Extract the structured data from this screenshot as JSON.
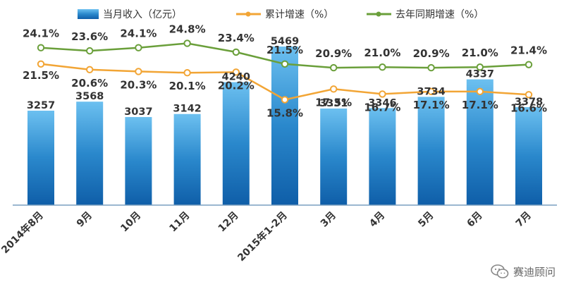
{
  "chart_data": {
    "type": "bar+line",
    "categories": [
      "2014年8月",
      "9月",
      "10月",
      "11月",
      "12月",
      "2015年1-2月",
      "3月",
      "4月",
      "5月",
      "6月",
      "7月"
    ],
    "series": [
      {
        "name": "当月收入（亿元）",
        "type": "bar",
        "values": [
          3257,
          3568,
          3037,
          3142,
          4240,
          5469,
          3331,
          3346,
          3734,
          4337,
          3378
        ]
      },
      {
        "name": "累计增速（%）",
        "type": "line",
        "values": [
          21.5,
          20.6,
          20.3,
          20.1,
          20.2,
          15.8,
          17.5,
          16.7,
          17.1,
          17.1,
          16.6
        ]
      },
      {
        "name": "去年同期增速（%）",
        "type": "line",
        "values": [
          24.1,
          23.6,
          24.1,
          24.8,
          23.4,
          21.5,
          20.9,
          21.0,
          20.9,
          21.0,
          21.4
        ]
      }
    ],
    "colors": {
      "bar": "#2a88cc",
      "cumulative": "#f2a535",
      "last_year": "#6a9f3a"
    },
    "legend_position": "top",
    "grid": false
  },
  "watermark": {
    "text": "赛迪顾问",
    "icon": "wechat-icon"
  }
}
